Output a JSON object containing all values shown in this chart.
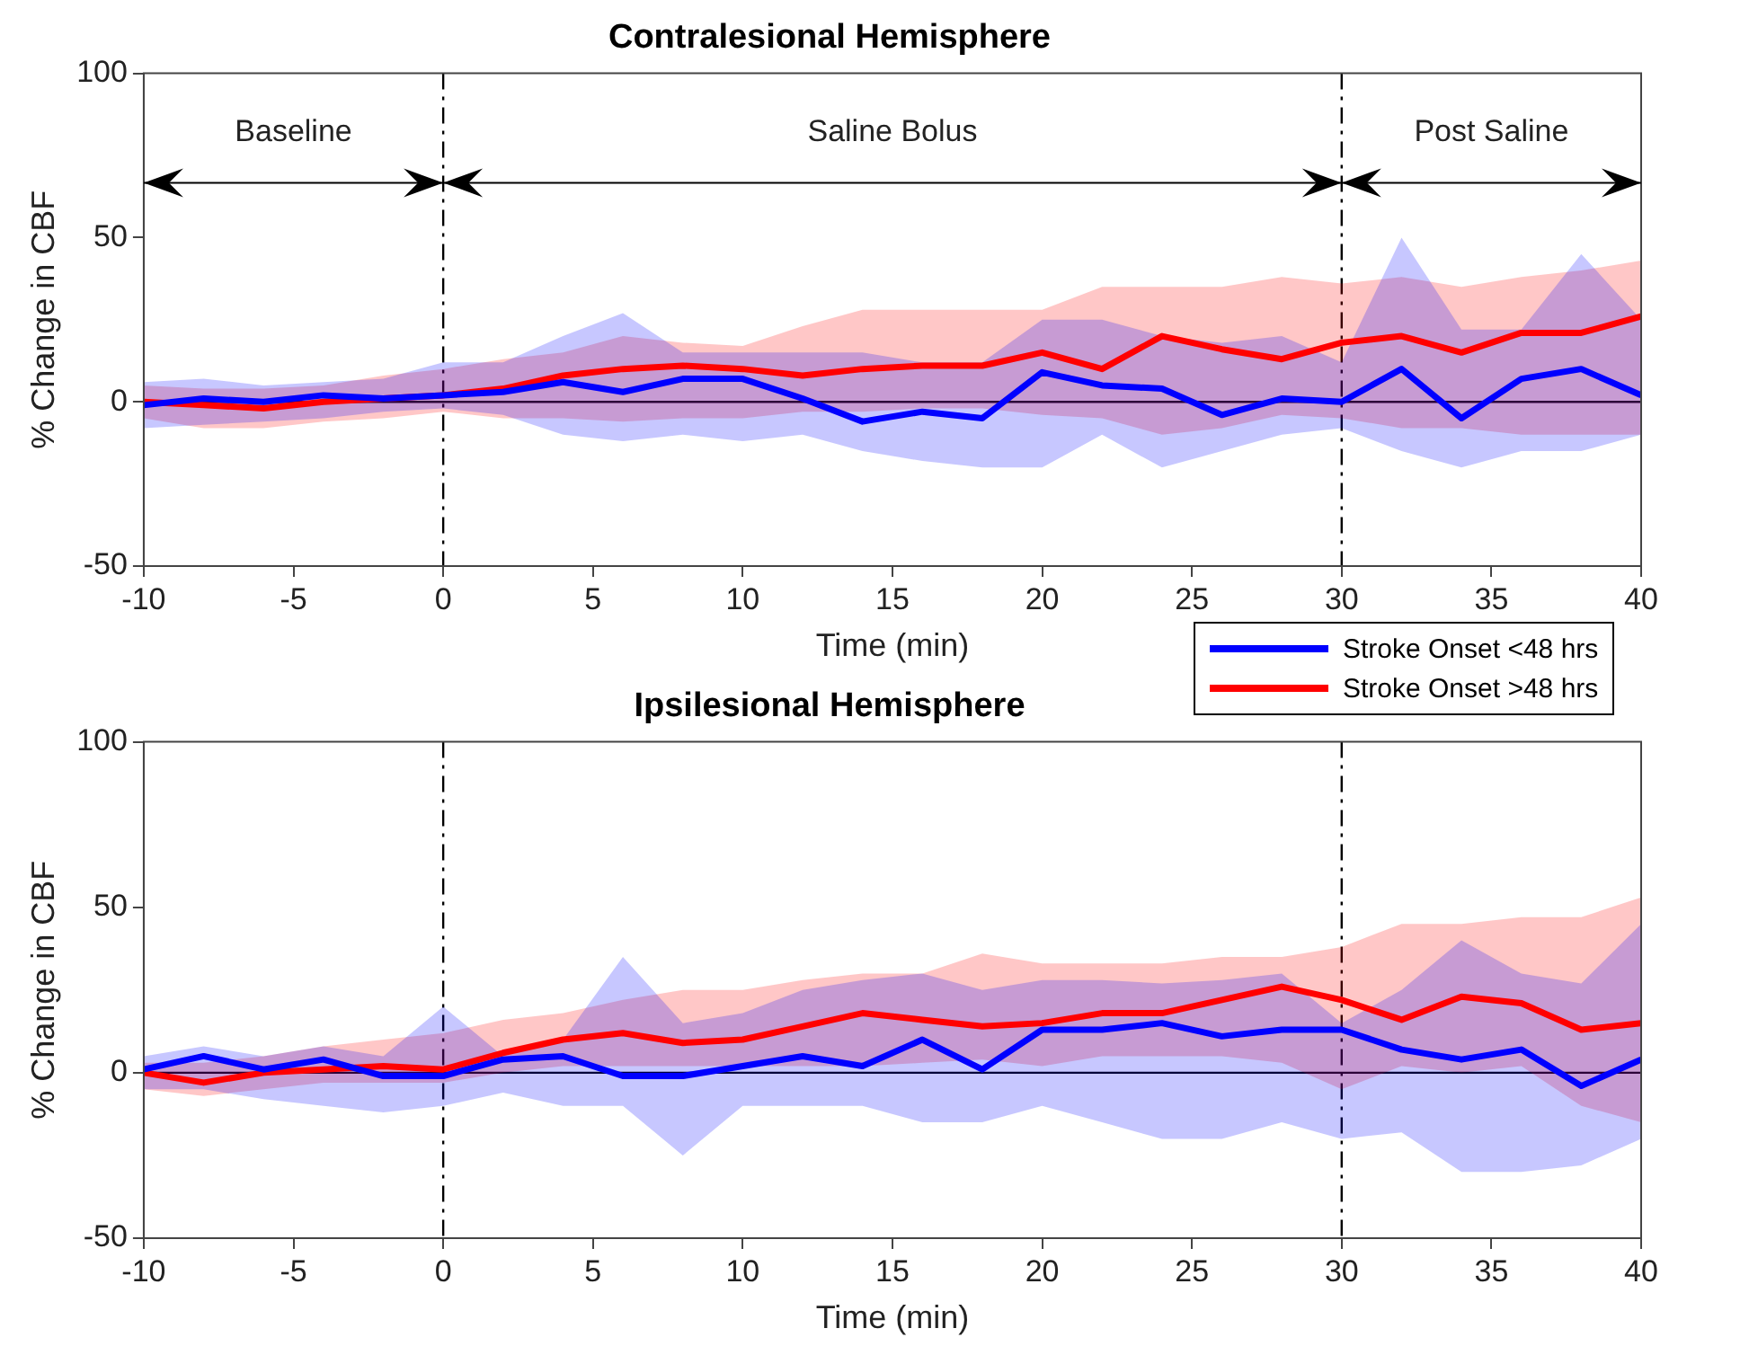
{
  "chart_data": [
    {
      "type": "line",
      "title": "Contralesional Hemisphere",
      "xlabel": "Time (min)",
      "ylabel": "% Change in CBF",
      "xlim": [
        -10,
        40
      ],
      "xticks": [
        -10,
        -5,
        0,
        5,
        10,
        15,
        20,
        25,
        30,
        35,
        40
      ],
      "ylim": [
        -50,
        100
      ],
      "yticks": [
        -50,
        0,
        50,
        100
      ],
      "grid": false,
      "legend": "bottom right",
      "marker": "none",
      "line_style": "solid",
      "x": [
        -10,
        -8,
        -6,
        -4,
        -2,
        0,
        2,
        4,
        6,
        8,
        10,
        12,
        14,
        16,
        18,
        20,
        22,
        24,
        26,
        28,
        30,
        32,
        34,
        36,
        38,
        40
      ],
      "series": [
        {
          "name": "Stroke Onset <48 hrs",
          "color": "#0000ff",
          "values": [
            -1,
            1,
            0,
            2,
            1,
            2,
            3,
            6,
            3,
            7,
            7,
            1,
            -6,
            -3,
            -5,
            9,
            5,
            4,
            -4,
            1,
            0,
            10,
            -5,
            7,
            10,
            2
          ],
          "lower": [
            -8,
            -7,
            -6,
            -5,
            -3,
            -2,
            -4,
            -10,
            -12,
            -10,
            -12,
            -10,
            -15,
            -18,
            -20,
            -20,
            -10,
            -20,
            -15,
            -10,
            -8,
            -15,
            -20,
            -15,
            -15,
            -10
          ],
          "upper": [
            6,
            7,
            5,
            6,
            7,
            12,
            12,
            20,
            27,
            15,
            15,
            15,
            15,
            12,
            12,
            25,
            25,
            20,
            18,
            20,
            12,
            50,
            22,
            22,
            45,
            25
          ]
        },
        {
          "name": "Stroke Onset >48 hrs",
          "color": "#ff0000",
          "values": [
            0,
            -1,
            -2,
            0,
            1,
            2,
            4,
            8,
            10,
            11,
            10,
            8,
            10,
            11,
            11,
            15,
            10,
            20,
            16,
            13,
            18,
            20,
            15,
            21,
            21,
            26
          ],
          "lower": [
            -5,
            -8,
            -8,
            -6,
            -5,
            -3,
            -5,
            -5,
            -6,
            -5,
            -5,
            -3,
            -3,
            -2,
            -2,
            -4,
            -5,
            -10,
            -8,
            -4,
            -5,
            -8,
            -8,
            -10,
            -10,
            -10
          ],
          "upper": [
            5,
            4,
            4,
            5,
            8,
            10,
            13,
            15,
            20,
            18,
            17,
            23,
            28,
            28,
            28,
            28,
            35,
            35,
            35,
            38,
            36,
            38,
            35,
            38,
            40,
            43
          ]
        }
      ],
      "ref_lines": [
        {
          "axis": "x",
          "value": 0,
          "color": "#000000",
          "line_style": "dashed"
        },
        {
          "axis": "x",
          "value": 30,
          "color": "#000000",
          "line_style": "dashed"
        },
        {
          "axis": "y",
          "value": 0,
          "color": "#000000",
          "line_style": "solid"
        }
      ],
      "annotations": [
        "Baseline",
        "Saline Bolus",
        "Post Saline"
      ]
    },
    {
      "type": "line",
      "title": "Ipsilesional Hemisphere",
      "xlabel": "Time (min)",
      "ylabel": "% Change in CBF",
      "xlim": [
        -10,
        40
      ],
      "xticks": [
        -10,
        -5,
        0,
        5,
        10,
        15,
        20,
        25,
        30,
        35,
        40
      ],
      "ylim": [
        -50,
        100
      ],
      "yticks": [
        -50,
        0,
        50,
        100
      ],
      "grid": false,
      "marker": "none",
      "line_style": "solid",
      "x": [
        -10,
        -8,
        -6,
        -4,
        -2,
        0,
        2,
        4,
        6,
        8,
        10,
        12,
        14,
        16,
        18,
        20,
        22,
        24,
        26,
        28,
        30,
        32,
        34,
        36,
        38,
        40
      ],
      "series": [
        {
          "color": "#0000ff",
          "values": [
            1,
            5,
            1,
            4,
            -1,
            -1,
            4,
            5,
            -1,
            -1,
            2,
            5,
            2,
            10,
            1,
            13,
            13,
            15,
            11,
            13,
            13,
            7,
            4,
            7,
            -4,
            4
          ],
          "lower": [
            -5,
            -5,
            -8,
            -10,
            -12,
            -10,
            -6,
            -10,
            -10,
            -25,
            -10,
            -10,
            -10,
            -15,
            -15,
            -10,
            -15,
            -20,
            -20,
            -15,
            -20,
            -18,
            -30,
            -30,
            -28,
            -20
          ],
          "upper": [
            5,
            8,
            5,
            8,
            5,
            20,
            5,
            10,
            35,
            15,
            18,
            25,
            28,
            30,
            25,
            28,
            28,
            27,
            28,
            30,
            15,
            25,
            40,
            30,
            27,
            45
          ]
        },
        {
          "color": "#ff0000",
          "values": [
            0,
            -3,
            0,
            1,
            2,
            1,
            6,
            10,
            12,
            9,
            10,
            14,
            18,
            16,
            14,
            15,
            18,
            18,
            22,
            26,
            22,
            16,
            23,
            21,
            13,
            15
          ],
          "lower": [
            -5,
            -7,
            -5,
            -3,
            -3,
            -3,
            0,
            2,
            2,
            2,
            2,
            2,
            2,
            3,
            4,
            2,
            5,
            5,
            5,
            3,
            -5,
            2,
            0,
            2,
            -10,
            -15
          ],
          "upper": [
            3,
            3,
            5,
            8,
            10,
            12,
            16,
            18,
            22,
            25,
            25,
            28,
            30,
            30,
            36,
            33,
            33,
            33,
            35,
            35,
            38,
            45,
            45,
            47,
            47,
            53
          ]
        }
      ],
      "ref_lines": [
        {
          "axis": "x",
          "value": 0,
          "color": "#000000",
          "line_style": "dashed"
        },
        {
          "axis": "x",
          "value": 30,
          "color": "#000000",
          "line_style": "dashed"
        },
        {
          "axis": "y",
          "value": 0,
          "color": "#000000",
          "line_style": "solid"
        }
      ]
    }
  ]
}
